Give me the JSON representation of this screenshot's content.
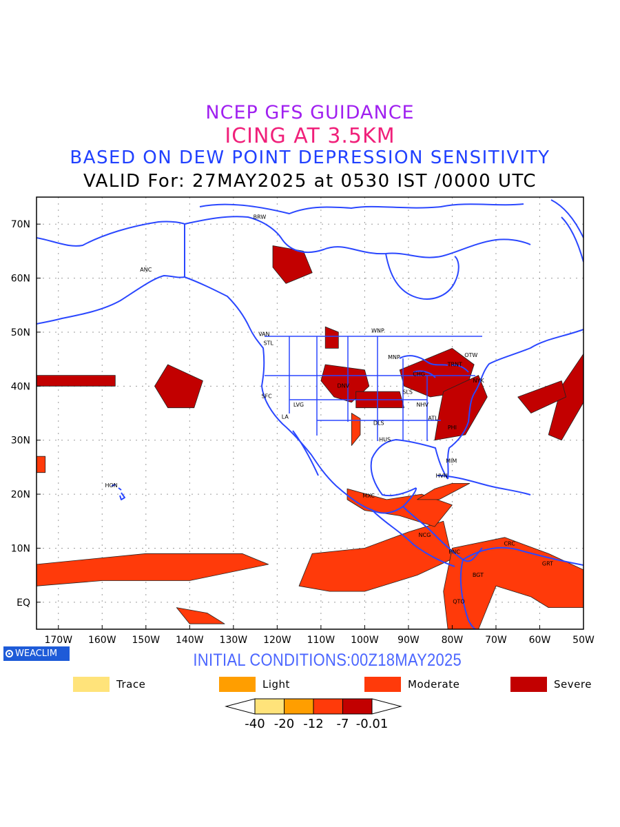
{
  "titles": {
    "line1": "NCEP GFS GUIDANCE",
    "line2": "ICING AT 3.5KM",
    "line3": "BASED ON DEW POINT DEPRESSION SENSITIVITY",
    "line4": "VALID For: 27MAY2025 at 0530 IST /0000 UTC"
  },
  "colors": {
    "coast": "#2a47ff",
    "trace": "#ffe37a",
    "light": "#ff9e00",
    "moderate": "#ff3a0a",
    "severe": "#c20000",
    "grid": "#9a9a9a"
  },
  "map": {
    "lon_range": [
      -175,
      -50
    ],
    "lat_range": [
      -5,
      75
    ],
    "x_ticks": [
      "170W",
      "160W",
      "150W",
      "140W",
      "130W",
      "120W",
      "110W",
      "100W",
      "90W",
      "80W",
      "70W",
      "60W",
      "50W"
    ],
    "y_ticks": [
      "EQ",
      "10N",
      "20N",
      "30N",
      "40N",
      "50N",
      "60N",
      "70N"
    ],
    "stations": [
      {
        "code": "ANC",
        "lon": -150,
        "lat": 61.2
      },
      {
        "code": "BRW",
        "lon": -124,
        "lat": 71
      },
      {
        "code": "VAN",
        "lon": -123,
        "lat": 49.3
      },
      {
        "code": "STL",
        "lon": -122,
        "lat": 47.6
      },
      {
        "code": "WNP",
        "lon": -97,
        "lat": 49.9
      },
      {
        "code": "SFC",
        "lon": -122.4,
        "lat": 37.8
      },
      {
        "code": "LA",
        "lon": -118.2,
        "lat": 34
      },
      {
        "code": "LVG",
        "lon": -115.1,
        "lat": 36.2
      },
      {
        "code": "DNV",
        "lon": -104.9,
        "lat": 39.7
      },
      {
        "code": "MNP",
        "lon": -93.3,
        "lat": 45
      },
      {
        "code": "CHG",
        "lon": -87.6,
        "lat": 41.9
      },
      {
        "code": "TRNT",
        "lon": -79.4,
        "lat": 43.7
      },
      {
        "code": "OTW",
        "lon": -75.7,
        "lat": 45.4
      },
      {
        "code": "NYK",
        "lon": -74,
        "lat": 40.7
      },
      {
        "code": "SLS",
        "lon": -90.2,
        "lat": 38.6
      },
      {
        "code": "NHV",
        "lon": -86.8,
        "lat": 36.2
      },
      {
        "code": "ATL",
        "lon": -84.4,
        "lat": 33.7
      },
      {
        "code": "DLS",
        "lon": -96.8,
        "lat": 32.8
      },
      {
        "code": "HUS",
        "lon": -95.4,
        "lat": 29.8
      },
      {
        "code": "PHI",
        "lon": -80,
        "lat": 32
      },
      {
        "code": "MIM",
        "lon": -80.2,
        "lat": 25.8
      },
      {
        "code": "HVN",
        "lon": -82.4,
        "lat": 23.1
      },
      {
        "code": "HON",
        "lon": -157.9,
        "lat": 21.3
      },
      {
        "code": "MXC",
        "lon": -99.1,
        "lat": 19.4
      },
      {
        "code": "NCG",
        "lon": -86.3,
        "lat": 12.1
      },
      {
        "code": "PNC",
        "lon": -79.5,
        "lat": 9
      },
      {
        "code": "CRC",
        "lon": -66.9,
        "lat": 10.5
      },
      {
        "code": "BGT",
        "lon": -74.1,
        "lat": 4.7
      },
      {
        "code": "QTO",
        "lon": -78.5,
        "lat": -0.2
      },
      {
        "code": "GRT",
        "lon": -58.2,
        "lat": 6.8
      }
    ],
    "icing_areas": [
      {
        "level": "severe",
        "pts": [
          [
            -121,
            66
          ],
          [
            -114,
            65
          ],
          [
            -112,
            61
          ],
          [
            -118,
            59
          ],
          [
            -121,
            62
          ]
        ]
      },
      {
        "level": "severe",
        "pts": [
          [
            -109,
            51
          ],
          [
            -106,
            50
          ],
          [
            -106,
            47
          ],
          [
            -109,
            47
          ]
        ]
      },
      {
        "level": "severe",
        "pts": [
          [
            -109,
            44
          ],
          [
            -100,
            43
          ],
          [
            -99,
            40
          ],
          [
            -103,
            37
          ],
          [
            -107,
            38
          ],
          [
            -110,
            41
          ]
        ]
      },
      {
        "level": "severe",
        "pts": [
          [
            -102,
            39
          ],
          [
            -92,
            39
          ],
          [
            -91,
            36
          ],
          [
            -102,
            36
          ]
        ]
      },
      {
        "level": "severe",
        "pts": [
          [
            -92,
            43
          ],
          [
            -80,
            47
          ],
          [
            -75,
            44
          ],
          [
            -77,
            39
          ],
          [
            -85,
            38
          ],
          [
            -91,
            40
          ]
        ]
      },
      {
        "level": "severe",
        "pts": [
          [
            -82,
            39
          ],
          [
            -74,
            42
          ],
          [
            -72,
            38
          ],
          [
            -77,
            31
          ],
          [
            -84,
            30
          ],
          [
            -83,
            35
          ]
        ]
      },
      {
        "level": "severe",
        "pts": [
          [
            -145,
            44
          ],
          [
            -137,
            41
          ],
          [
            -139,
            36
          ],
          [
            -145,
            36
          ],
          [
            -148,
            40
          ]
        ]
      },
      {
        "level": "severe",
        "pts": [
          [
            -175,
            42
          ],
          [
            -157,
            42
          ],
          [
            -157,
            40
          ],
          [
            -175,
            40
          ]
        ]
      },
      {
        "level": "severe",
        "pts": [
          [
            -55,
            40
          ],
          [
            -50,
            46
          ],
          [
            -50,
            37
          ],
          [
            -55,
            30
          ],
          [
            -58,
            31
          ]
        ]
      },
      {
        "level": "severe",
        "pts": [
          [
            -65,
            38
          ],
          [
            -55,
            41
          ],
          [
            -54,
            38
          ],
          [
            -62,
            35
          ]
        ]
      },
      {
        "level": "moderate",
        "pts": [
          [
            -103,
            35
          ],
          [
            -101,
            34
          ],
          [
            -101,
            31
          ],
          [
            -103,
            29
          ]
        ]
      },
      {
        "level": "moderate",
        "pts": [
          [
            -175,
            7
          ],
          [
            -150,
            9
          ],
          [
            -128,
            9
          ],
          [
            -122,
            7
          ],
          [
            -140,
            4
          ],
          [
            -160,
            4
          ],
          [
            -175,
            3
          ]
        ]
      },
      {
        "level": "moderate",
        "pts": [
          [
            -112,
            9
          ],
          [
            -100,
            10
          ],
          [
            -90,
            13
          ],
          [
            -82,
            15
          ],
          [
            -80,
            8
          ],
          [
            -88,
            5
          ],
          [
            -100,
            2
          ],
          [
            -108,
            2
          ],
          [
            -115,
            3
          ]
        ]
      },
      {
        "level": "moderate",
        "pts": [
          [
            -104,
            21
          ],
          [
            -95,
            19
          ],
          [
            -87,
            20
          ],
          [
            -80,
            18
          ],
          [
            -84,
            14
          ],
          [
            -92,
            16
          ],
          [
            -100,
            17
          ],
          [
            -104,
            19
          ]
        ]
      },
      {
        "level": "moderate",
        "pts": [
          [
            -88,
            19
          ],
          [
            -84,
            21
          ],
          [
            -80,
            22
          ],
          [
            -76,
            22
          ],
          [
            -83,
            19
          ]
        ]
      },
      {
        "level": "moderate",
        "pts": [
          [
            -80,
            10
          ],
          [
            -68,
            12
          ],
          [
            -58,
            9
          ],
          [
            -50,
            6
          ],
          [
            -50,
            -1
          ],
          [
            -58,
            -1
          ],
          [
            -62,
            1
          ],
          [
            -70,
            3
          ],
          [
            -74,
            -5
          ],
          [
            -81,
            -5
          ],
          [
            -82,
            2
          ]
        ]
      },
      {
        "level": "moderate",
        "pts": [
          [
            -143,
            -1
          ],
          [
            -136,
            -2
          ],
          [
            -132,
            -4
          ],
          [
            -140,
            -4
          ]
        ]
      },
      {
        "level": "moderate",
        "pts": [
          [
            -175,
            27
          ],
          [
            -173,
            27
          ],
          [
            -173,
            24
          ],
          [
            -175,
            24
          ]
        ]
      }
    ]
  },
  "footer": {
    "badge_label": "WEACLIM",
    "initial_conditions": "INITIAL CONDITIONS:00Z18MAY2025"
  },
  "legend": [
    {
      "label": "Trace",
      "color_key": "trace"
    },
    {
      "label": "Light",
      "color_key": "light"
    },
    {
      "label": "Moderate",
      "color_key": "moderate"
    },
    {
      "label": "Severe",
      "color_key": "severe"
    }
  ],
  "colorbar": {
    "tick_labels": [
      "-40",
      "-20",
      "-12",
      "-7",
      "-0.01"
    ],
    "colors": [
      "#ffe37a",
      "#ff9e00",
      "#ff3a0a",
      "#c20000"
    ]
  }
}
